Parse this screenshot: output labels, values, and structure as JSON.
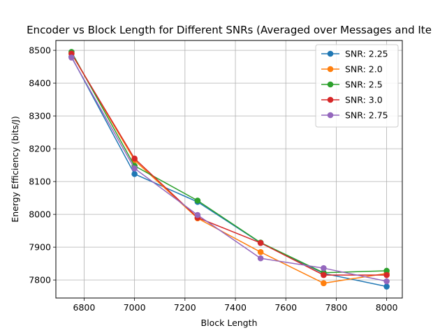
{
  "chart_data": {
    "type": "line",
    "title": "Encoder vs Block Length for Different SNRs (Averaged over Messages and Ite",
    "xlabel": "Block Length",
    "ylabel": "Energy Efficiency (bits/J)",
    "xlim": [
      6688,
      8062
    ],
    "ylim": [
      7745,
      8530
    ],
    "xticks": [
      6800,
      7000,
      7200,
      7400,
      7600,
      7800,
      8000
    ],
    "yticks": [
      7800,
      7900,
      8000,
      8100,
      8200,
      8300,
      8400,
      8500
    ],
    "grid": true,
    "legend_position": "top-right",
    "x": [
      6750,
      7000,
      7250,
      7500,
      7750,
      8000
    ],
    "series": [
      {
        "name": "SNR: 2.25",
        "color": "#1f77b4",
        "values": [
          8480,
          8123,
          8038,
          7913,
          7820,
          7780
        ]
      },
      {
        "name": "SNR: 2.0",
        "color": "#ff7f0e",
        "values": [
          8490,
          8165,
          7988,
          7885,
          7790,
          7820
        ]
      },
      {
        "name": "SNR: 2.5",
        "color": "#2ca02c",
        "values": [
          8495,
          8148,
          8042,
          7914,
          7822,
          7828
        ]
      },
      {
        "name": "SNR: 3.0",
        "color": "#d62728",
        "values": [
          8490,
          8170,
          7990,
          7913,
          7815,
          7815
        ]
      },
      {
        "name": "SNR: 2.75",
        "color": "#9467bd",
        "values": [
          8478,
          8140,
          7998,
          7866,
          7836,
          7796
        ]
      }
    ]
  }
}
